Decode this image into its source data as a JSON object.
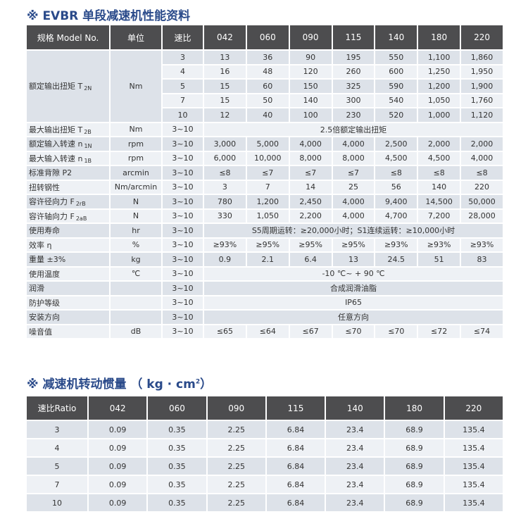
{
  "table1": {
    "title": "※ EVBR 单段减速机性能资料",
    "headers": [
      "规格 Model No.",
      "单位",
      "速比",
      "042",
      "060",
      "090",
      "115",
      "140",
      "180",
      "220"
    ],
    "torque": {
      "param": "额定输出扭矩 T",
      "param_sub": "2N",
      "unit": "Nm",
      "rows": [
        {
          "ratio": "3",
          "values": [
            "13",
            "36",
            "90",
            "195",
            "550",
            "1,100",
            "1,860"
          ]
        },
        {
          "ratio": "4",
          "values": [
            "16",
            "48",
            "120",
            "260",
            "600",
            "1,250",
            "1,950"
          ]
        },
        {
          "ratio": "5",
          "values": [
            "15",
            "60",
            "150",
            "325",
            "590",
            "1,200",
            "1,900"
          ]
        },
        {
          "ratio": "7",
          "values": [
            "15",
            "50",
            "140",
            "300",
            "540",
            "1,050",
            "1,760"
          ]
        },
        {
          "ratio": "10",
          "values": [
            "12",
            "40",
            "100",
            "230",
            "520",
            "1,000",
            "1,120"
          ]
        }
      ]
    },
    "rows": [
      {
        "param": "最大输出扭矩 T",
        "sub": "2B",
        "unit": "Nm",
        "ratio": "3~10",
        "span": "2.5倍额定输出扭矩"
      },
      {
        "param": "额定输入转速 n",
        "sub": "1N",
        "unit": "rpm",
        "ratio": "3~10",
        "values": [
          "3,000",
          "5,000",
          "4,000",
          "4,000",
          "2,500",
          "2,000",
          "2,000"
        ]
      },
      {
        "param": "最大输入转速 n",
        "sub": "1B",
        "unit": "rpm",
        "ratio": "3~10",
        "values": [
          "6,000",
          "10,000",
          "8,000",
          "8,000",
          "4,500",
          "4,500",
          "4,000"
        ]
      },
      {
        "param": "标准背隙 P2",
        "sub": "",
        "unit": "arcmin",
        "ratio": "3~10",
        "values": [
          "≤8",
          "≤7",
          "≤7",
          "≤7",
          "≤8",
          "≤8",
          "≤8"
        ]
      },
      {
        "param": "扭转钢性",
        "sub": "",
        "unit": "Nm/arcmin",
        "ratio": "3~10",
        "values": [
          "3",
          "7",
          "14",
          "25",
          "56",
          "140",
          "220"
        ]
      },
      {
        "param": "容许径向力 F",
        "sub": "2rB",
        "unit": "N",
        "ratio": "3~10",
        "values": [
          "780",
          "1,200",
          "2,450",
          "4,000",
          "9,400",
          "14,500",
          "50,000"
        ]
      },
      {
        "param": "容许轴向力 F",
        "sub": "2aB",
        "unit": "N",
        "ratio": "3~10",
        "values": [
          "330",
          "1,050",
          "2,200",
          "4,000",
          "4,700",
          "7,200",
          "28,000"
        ]
      },
      {
        "param": "使用寿命",
        "sub": "",
        "unit": "hr",
        "ratio": "3~10",
        "span": "S5周期运转：≥20,000小时；S1连续运转：≥10,000小时"
      },
      {
        "param": "效率 η",
        "sub": "",
        "unit": "%",
        "ratio": "3~10",
        "values": [
          "≥93%",
          "≥95%",
          "≥95%",
          "≥95%",
          "≥93%",
          "≥93%",
          "≥93%"
        ]
      },
      {
        "param": "重量 ±3%",
        "sub": "",
        "unit": "kg",
        "ratio": "3~10",
        "values": [
          "0.9",
          "2.1",
          "6.4",
          "13",
          "24.5",
          "51",
          "83"
        ]
      },
      {
        "param": "使用温度",
        "sub": "",
        "unit": "℃",
        "ratio": "3~10",
        "span": "-10 ℃~ + 90 ℃"
      },
      {
        "param": "润滑",
        "sub": "",
        "unit": "",
        "ratio": "3~10",
        "span": "合成润滑油脂"
      },
      {
        "param": "防护等级",
        "sub": "",
        "unit": "",
        "ratio": "3~10",
        "span": "IP65"
      },
      {
        "param": "安装方向",
        "sub": "",
        "unit": "",
        "ratio": "3~10",
        "span": "任意方向"
      },
      {
        "param": "噪音值",
        "sub": "",
        "unit": "dB",
        "ratio": "3~10",
        "values": [
          "≤65",
          "≤64",
          "≤67",
          "≤70",
          "≤70",
          "≤72",
          "≤74"
        ]
      }
    ]
  },
  "table2": {
    "title": "※ 减速机转动惯量 （ kg · cm",
    "title_sup": "2",
    "title_end": "）",
    "headers": [
      "速比Ratio",
      "042",
      "060",
      "090",
      "115",
      "140",
      "180",
      "220"
    ],
    "rows": [
      {
        "ratio": "3",
        "values": [
          "0.09",
          "0.35",
          "2.25",
          "6.84",
          "23.4",
          "68.9",
          "135.4"
        ]
      },
      {
        "ratio": "4",
        "values": [
          "0.09",
          "0.35",
          "2.25",
          "6.84",
          "23.4",
          "68.9",
          "135.4"
        ]
      },
      {
        "ratio": "5",
        "values": [
          "0.09",
          "0.35",
          "2.25",
          "6.84",
          "23.4",
          "68.9",
          "135.4"
        ]
      },
      {
        "ratio": "7",
        "values": [
          "0.09",
          "0.35",
          "2.25",
          "6.84",
          "23.4",
          "68.9",
          "135.4"
        ]
      },
      {
        "ratio": "10",
        "values": [
          "0.09",
          "0.35",
          "2.25",
          "6.84",
          "23.4",
          "68.9",
          "135.4"
        ]
      }
    ]
  }
}
